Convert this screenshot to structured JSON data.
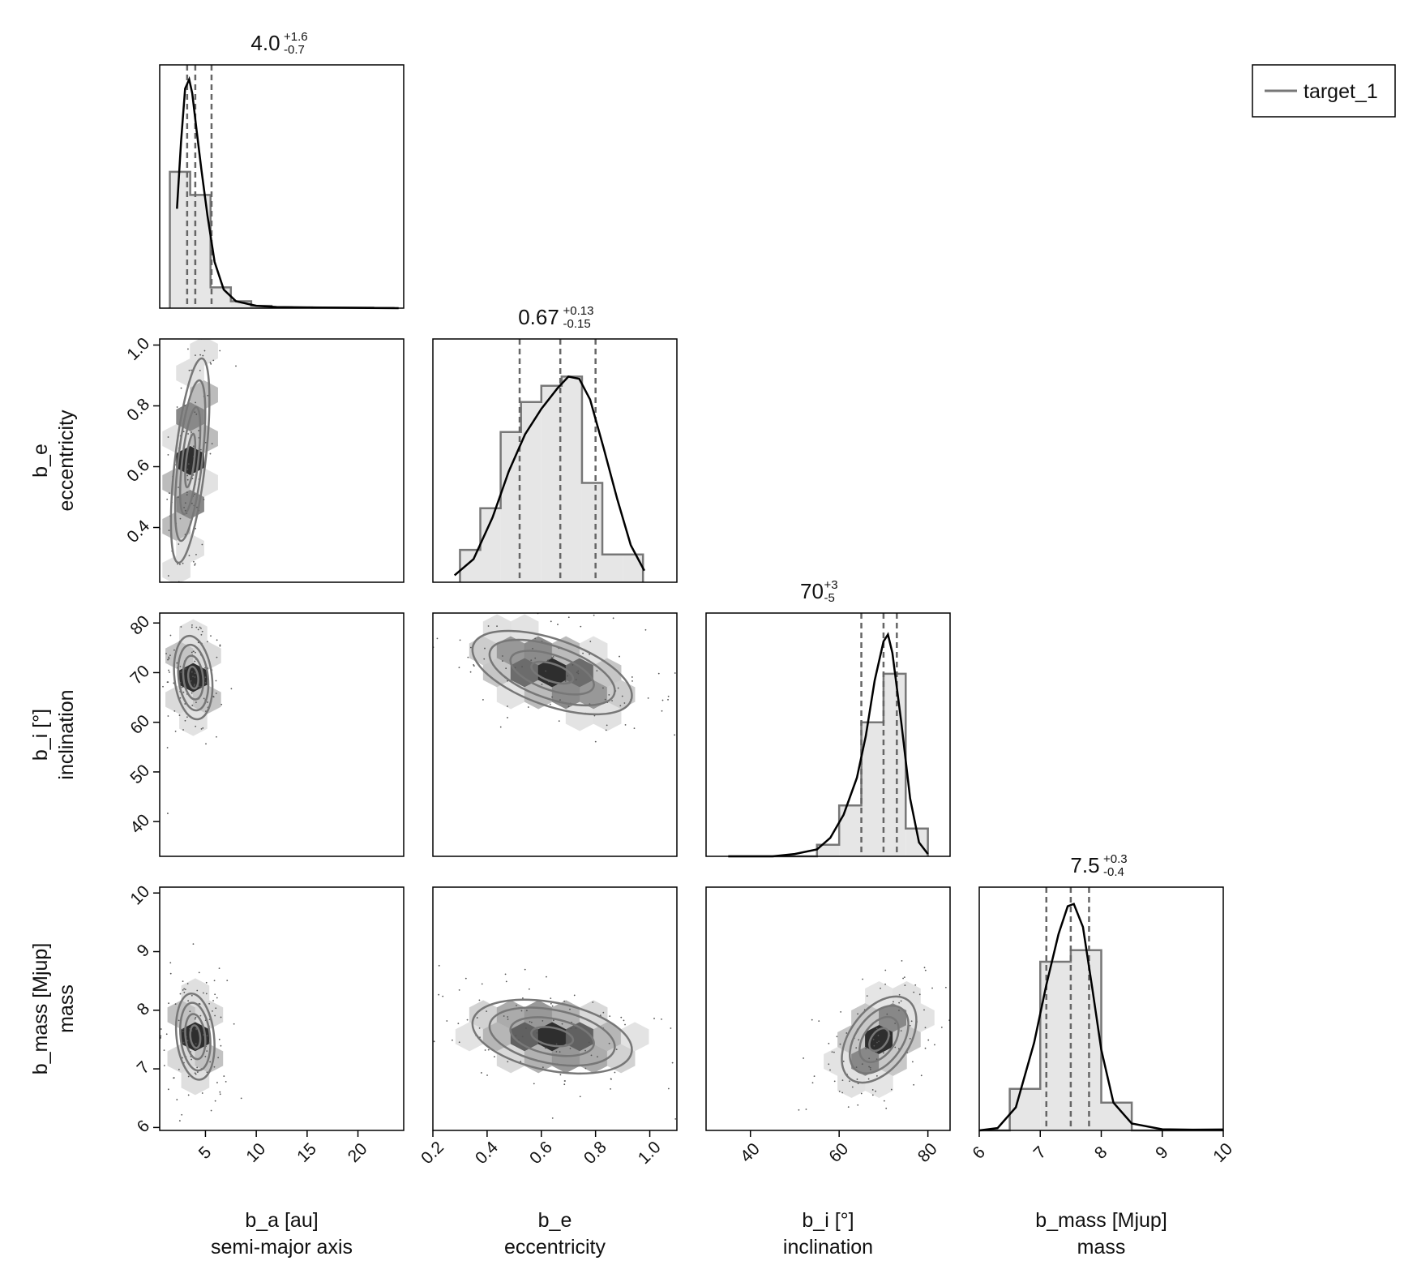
{
  "chart_data": {
    "type": "corner",
    "series_name": "target_1",
    "legend": {
      "label": "target_1",
      "placement": "top-right"
    },
    "parameters": [
      {
        "key": "b_a",
        "label": "b_a [au]",
        "sublabel": "semi-major axis",
        "range": [
          0.5,
          24.5
        ],
        "ticks": [
          5,
          10,
          15,
          20,
          25
        ],
        "median": "4.0",
        "plus": "+1.6",
        "minus": "-0.7",
        "quantiles": [
          3.2,
          4.0,
          5.6
        ]
      },
      {
        "key": "b_e",
        "label": "b_e",
        "sublabel": "eccentricity",
        "range": [
          0.2,
          1.1
        ],
        "ticks": [
          0.2,
          0.4,
          0.6,
          0.8,
          1.0
        ],
        "median": "0.67",
        "plus": "+0.13",
        "minus": "-0.15",
        "quantiles": [
          0.52,
          0.67,
          0.8
        ]
      },
      {
        "key": "b_i",
        "label": "b_i [°]",
        "sublabel": "inclination",
        "range": [
          30,
          85
        ],
        "ticks": [
          40,
          60,
          80
        ],
        "median": "70",
        "plus": "+3",
        "minus": "-5",
        "quantiles": [
          65,
          70,
          73
        ]
      },
      {
        "key": "b_mass",
        "label": "b_mass [Mjup]",
        "sublabel": "mass",
        "range": [
          6.0,
          10.0
        ],
        "ticks": [
          6,
          7,
          8,
          9,
          10
        ],
        "median": "7.5",
        "plus": "+0.3",
        "minus": "-0.4",
        "quantiles": [
          7.1,
          7.5,
          7.8
        ]
      }
    ],
    "row_ticks": {
      "b_e": [
        0.4,
        0.6,
        0.8,
        1.0
      ],
      "b_i": [
        40,
        50,
        60,
        70,
        80
      ],
      "b_mass": [
        6,
        7,
        8,
        9,
        10
      ]
    },
    "row_ranges": {
      "b_e": [
        0.22,
        1.02
      ],
      "b_i": [
        33,
        82
      ],
      "b_mass": [
        5.95,
        10.1
      ]
    },
    "histograms": {
      "b_a": {
        "edges": [
          1.5,
          3.5,
          5.5,
          7.5,
          9.5,
          11.5,
          13.5,
          15.5,
          17.5,
          19.5,
          21.5,
          23.5
        ],
        "density": [
          0.59,
          0.49,
          0.09,
          0.03,
          0.01,
          0.004,
          0.003,
          0.002,
          0.002,
          0.002,
          0.001
        ],
        "ymax": 1.0
      },
      "b_e": {
        "edges": [
          0.3,
          0.375,
          0.45,
          0.525,
          0.6,
          0.675,
          0.75,
          0.825,
          0.9,
          0.975
        ],
        "density": [
          0.14,
          0.32,
          0.65,
          0.78,
          0.85,
          0.89,
          0.43,
          0.12,
          0.12
        ],
        "ymax": 1.0
      },
      "b_i": {
        "edges": [
          35,
          40,
          45,
          50,
          55,
          60,
          65,
          70,
          75,
          80
        ],
        "density": [
          0.0,
          0.0,
          0.0,
          0.0,
          0.05,
          0.22,
          0.58,
          0.79,
          0.12
        ],
        "ymax": 1.0
      },
      "b_mass": {
        "edges": [
          6.0,
          6.5,
          7.0,
          7.5,
          8.0,
          8.5,
          9.0,
          9.5,
          10.0
        ],
        "density": [
          0.0,
          0.18,
          0.73,
          0.78,
          0.12,
          0.0,
          0.0,
          0.0
        ],
        "ymax": 1.0
      }
    },
    "kde": {
      "b_a": {
        "x": [
          2.2,
          2.6,
          3.0,
          3.4,
          3.7,
          4.1,
          4.6,
          5.2,
          5.9,
          6.8,
          8.0,
          10,
          12,
          15,
          18,
          21,
          24
        ],
        "y": [
          0.43,
          0.72,
          0.95,
          0.99,
          0.93,
          0.78,
          0.6,
          0.4,
          0.2,
          0.08,
          0.03,
          0.01,
          0.005,
          0.003,
          0.002,
          0.001,
          0.0
        ]
      },
      "b_e": {
        "x": [
          0.28,
          0.35,
          0.42,
          0.48,
          0.54,
          0.6,
          0.66,
          0.7,
          0.74,
          0.78,
          0.83,
          0.88,
          0.93,
          0.98
        ],
        "y": [
          0.03,
          0.1,
          0.28,
          0.48,
          0.64,
          0.75,
          0.84,
          0.89,
          0.88,
          0.79,
          0.58,
          0.36,
          0.16,
          0.05
        ]
      },
      "b_i": {
        "x": [
          35,
          45,
          50,
          55,
          58,
          61,
          64,
          66,
          68,
          70,
          71,
          72,
          74,
          76,
          78,
          80
        ],
        "y": [
          0.0,
          0.0,
          0.01,
          0.03,
          0.08,
          0.18,
          0.34,
          0.52,
          0.76,
          0.93,
          0.96,
          0.88,
          0.58,
          0.25,
          0.06,
          0.01
        ]
      },
      "b_mass": {
        "x": [
          6.0,
          6.3,
          6.6,
          6.9,
          7.1,
          7.3,
          7.45,
          7.55,
          7.7,
          7.85,
          8.0,
          8.2,
          8.5,
          9.0,
          9.5,
          10.0
        ],
        "y": [
          0.0,
          0.01,
          0.1,
          0.38,
          0.63,
          0.85,
          0.97,
          0.98,
          0.88,
          0.62,
          0.35,
          0.12,
          0.03,
          0.005,
          0.003,
          0.004
        ]
      }
    },
    "pairs": [
      {
        "x": "b_a",
        "y": "b_e",
        "mean": [
          3.5,
          0.62
        ],
        "sd": [
          0.9,
          0.16
        ],
        "rho": 0.6
      },
      {
        "x": "b_a",
        "y": "b_i",
        "mean": [
          3.8,
          69
        ],
        "sd": [
          0.9,
          4.0
        ],
        "rho": -0.2
      },
      {
        "x": "b_e",
        "y": "b_i",
        "mean": [
          0.64,
          70
        ],
        "sd": [
          0.14,
          4.0
        ],
        "rho": -0.55
      },
      {
        "x": "b_a",
        "y": "b_mass",
        "mean": [
          4.0,
          7.55
        ],
        "sd": [
          0.9,
          0.35
        ],
        "rho": -0.2
      },
      {
        "x": "b_e",
        "y": "b_mass",
        "mean": [
          0.64,
          7.55
        ],
        "sd": [
          0.14,
          0.3
        ],
        "rho": -0.35
      },
      {
        "x": "b_i",
        "y": "b_mass",
        "mean": [
          69,
          7.5
        ],
        "sd": [
          4.0,
          0.35
        ],
        "rho": 0.45
      }
    ],
    "colors": {
      "hist_fill": "#e6e6e6",
      "hist_edge": "#777777",
      "kde": "#000000",
      "contour": "#777777",
      "quantile": "#666666"
    }
  }
}
